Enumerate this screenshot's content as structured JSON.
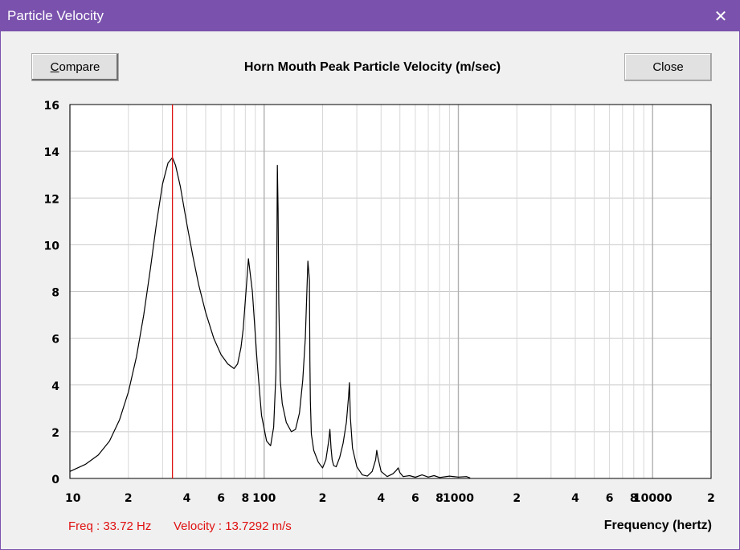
{
  "window": {
    "title": "Particle Velocity",
    "close_glyph": "✕",
    "title_bar_color": "#7a52ad"
  },
  "toolbar": {
    "compare_accel": "C",
    "compare_rest": "ompare",
    "close_label": "Close"
  },
  "readout": {
    "freq": "Freq : 33.72 Hz",
    "velocity": "Velocity : 13.7292 m/s",
    "color": "#e01010"
  },
  "chart_data": {
    "type": "line",
    "title": "Horn Mouth Peak Particle Velocity (m/sec)",
    "xlabel": "Frequency (hertz)",
    "ylabel": "",
    "xscale": "log",
    "xlim": [
      10,
      20000
    ],
    "ylim": [
      0,
      16
    ],
    "grid": true,
    "yticks": [
      0,
      2,
      4,
      6,
      8,
      10,
      12,
      14,
      16
    ],
    "ytick_labels": [
      "0",
      "2",
      "4",
      "6",
      "8",
      "10",
      "12",
      "14",
      "16"
    ],
    "xtick_values": [
      10,
      20,
      40,
      60,
      80,
      100,
      200,
      400,
      600,
      800,
      1000,
      2000,
      4000,
      6000,
      8000,
      10000,
      20000
    ],
    "xtick_labels": [
      "10",
      "2",
      "4",
      "6",
      "8",
      "100",
      "2",
      "4",
      "6",
      "8",
      "1000",
      "2",
      "4",
      "6",
      "8",
      "10000",
      "2"
    ],
    "cursor": {
      "x": 33.72,
      "y": 13.7292,
      "color": "#e01010"
    },
    "series": [
      {
        "name": "Particle Velocity",
        "color": "#000000",
        "x": [
          10,
          12,
          14,
          16,
          18,
          20,
          22,
          24,
          26,
          28,
          30,
          32,
          33.72,
          35,
          37,
          40,
          43,
          46,
          50,
          55,
          60,
          65,
          70,
          73,
          76,
          78,
          80,
          83,
          87,
          92,
          97,
          103,
          108,
          112,
          115,
          116,
          117,
          118,
          119,
          121,
          124,
          130,
          138,
          145,
          152,
          158,
          163,
          168,
          171,
          172,
          173,
          175,
          180,
          190,
          200,
          208,
          215,
          218,
          221,
          224,
          228,
          235,
          245,
          255,
          265,
          272,
          275,
          278,
          285,
          300,
          320,
          340,
          360,
          375,
          380,
          385,
          400,
          430,
          460,
          480,
          490,
          500,
          520,
          560,
          600,
          650,
          700,
          750,
          800,
          900,
          1000,
          1100,
          1150
        ],
        "y": [
          0.3,
          0.6,
          1.0,
          1.6,
          2.5,
          3.7,
          5.2,
          7.0,
          9.0,
          11.0,
          12.6,
          13.5,
          13.73,
          13.4,
          12.5,
          10.9,
          9.5,
          8.3,
          7.1,
          6.0,
          5.3,
          4.9,
          4.7,
          4.9,
          5.6,
          6.4,
          7.6,
          9.4,
          8.0,
          5.0,
          2.7,
          1.6,
          1.4,
          2.2,
          4.5,
          8.0,
          13.4,
          11.5,
          7.5,
          4.2,
          3.2,
          2.4,
          2.0,
          2.1,
          2.8,
          4.2,
          6.0,
          9.3,
          8.5,
          5.0,
          3.3,
          1.9,
          1.2,
          0.7,
          0.45,
          0.8,
          1.6,
          2.1,
          1.3,
          0.8,
          0.55,
          0.5,
          0.9,
          1.5,
          2.4,
          3.5,
          4.1,
          2.6,
          1.3,
          0.5,
          0.15,
          0.1,
          0.3,
          0.8,
          1.2,
          0.9,
          0.3,
          0.08,
          0.2,
          0.35,
          0.45,
          0.25,
          0.08,
          0.12,
          0.05,
          0.15,
          0.06,
          0.12,
          0.04,
          0.1,
          0.06,
          0.08,
          0.02
        ]
      }
    ]
  }
}
